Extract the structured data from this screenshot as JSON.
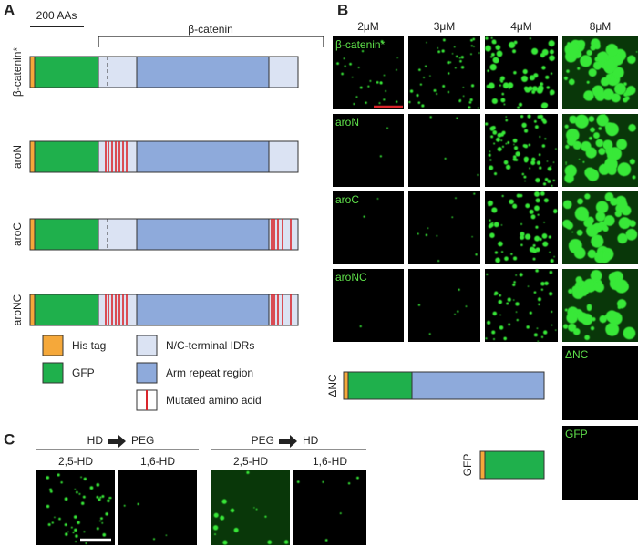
{
  "panels": {
    "a": {
      "label": "A",
      "scale_bar": "200 AAs",
      "bracket": "β-catenin",
      "constructs": [
        {
          "label": "β-catenin*"
        },
        {
          "label": "aroN"
        },
        {
          "label": "aroC"
        },
        {
          "label": "aroNC"
        }
      ],
      "legend": [
        {
          "label": "His tag"
        },
        {
          "label": "GFP"
        },
        {
          "label": "N/C-terminal IDRs"
        },
        {
          "label": "Arm repeat region"
        },
        {
          "label": "Mutated amino acid"
        }
      ]
    },
    "b": {
      "label": "B",
      "columns": [
        "2μM",
        "3μM",
        "4μM",
        "8μM"
      ],
      "rows": [
        "β-catenin*",
        "aroN",
        "aroC",
        "aroNC"
      ],
      "extra_constructs": [
        {
          "label": "ΔNC",
          "image_label": "ΔNC"
        },
        {
          "label": "GFP",
          "image_label": "GFP"
        }
      ]
    },
    "c": {
      "label": "C",
      "groups": [
        {
          "from": "HD",
          "to": "PEG",
          "columns": [
            "2,5-HD",
            "1,6-HD"
          ]
        },
        {
          "from": "PEG",
          "to": "HD",
          "columns": [
            "2,5-HD",
            "1,6-HD"
          ]
        }
      ]
    }
  }
}
